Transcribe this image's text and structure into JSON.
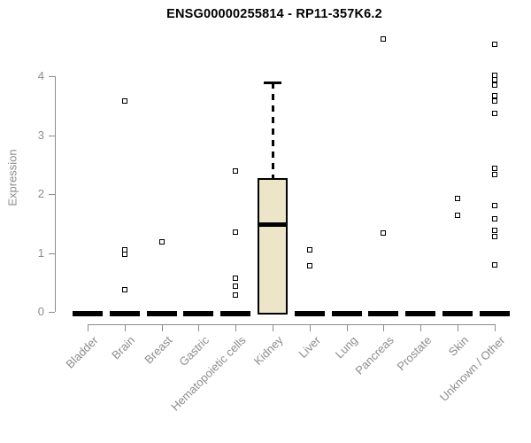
{
  "chart_data": {
    "type": "boxplot",
    "title": "ENSG00000255814 - RP11-357K6.2",
    "ylabel": "Expression",
    "xlabel": "",
    "ylim": [
      0,
      4
    ],
    "yticks": [
      0,
      1,
      2,
      3,
      4
    ],
    "grid": false,
    "legend": "none",
    "categories": [
      "Bladder",
      "Brain",
      "Breast",
      "Gastric",
      "Hematopoietic cells",
      "Kidney",
      "Liver",
      "Lung",
      "Pancreas",
      "Prostate",
      "Skin",
      "Unknown / Other"
    ],
    "boxes": [
      {
        "category": "Bladder",
        "low": 0,
        "q1": 0,
        "median": 0,
        "q3": 0,
        "high": 0
      },
      {
        "category": "Brain",
        "low": 0,
        "q1": 0,
        "median": 0,
        "q3": 0,
        "high": 0
      },
      {
        "category": "Breast",
        "low": 0,
        "q1": 0,
        "median": 0,
        "q3": 0,
        "high": 0
      },
      {
        "category": "Gastric",
        "low": 0,
        "q1": 0,
        "median": 0,
        "q3": 0,
        "high": 0
      },
      {
        "category": "Hematopoietic cells",
        "low": 0,
        "q1": 0,
        "median": 0,
        "q3": 0,
        "high": 0
      },
      {
        "category": "Kidney",
        "low": 0,
        "q1": 0,
        "median": 1.49,
        "q3": 2.27,
        "high": 3.9
      },
      {
        "category": "Liver",
        "low": 0,
        "q1": 0,
        "median": 0,
        "q3": 0,
        "high": 0
      },
      {
        "category": "Lung",
        "low": 0,
        "q1": 0,
        "median": 0,
        "q3": 0,
        "high": 0
      },
      {
        "category": "Pancreas",
        "low": 0,
        "q1": 0,
        "median": 0,
        "q3": 0,
        "high": 0
      },
      {
        "category": "Prostate",
        "low": 0,
        "q1": 0,
        "median": 0,
        "q3": 0,
        "high": 0
      },
      {
        "category": "Skin",
        "low": 0,
        "q1": 0,
        "median": 0,
        "q3": 0,
        "high": 0
      },
      {
        "category": "Unknown / Other",
        "low": 0,
        "q1": 0,
        "median": 0,
        "q3": 0,
        "high": 0
      }
    ],
    "outlier_points": [
      {
        "category": "Brain",
        "values": [
          3.59,
          1.06,
          0.98,
          0.38
        ]
      },
      {
        "category": "Breast",
        "values": [
          1.19
        ]
      },
      {
        "category": "Hematopoietic cells",
        "values": [
          2.39,
          1.35,
          0.57,
          0.44,
          0.29
        ]
      },
      {
        "category": "Liver",
        "values": [
          1.05,
          0.78
        ]
      },
      {
        "category": "Pancreas",
        "values": [
          4.64,
          1.34
        ]
      },
      {
        "category": "Skin",
        "values": [
          1.93,
          1.64
        ]
      },
      {
        "category": "Unknown / Other",
        "values": [
          4.55,
          4.02,
          3.94,
          3.86,
          3.67,
          3.58,
          3.37,
          2.44,
          2.34,
          1.8,
          1.58,
          1.39,
          1.28,
          0.8
        ]
      }
    ],
    "colors": {
      "box_fill": "#ece5c8",
      "marks": "#000000",
      "axis": "#8c8c8c",
      "axis_text": "#8c8c8c",
      "title_text": "#000000",
      "background": "#ffffff"
    }
  }
}
